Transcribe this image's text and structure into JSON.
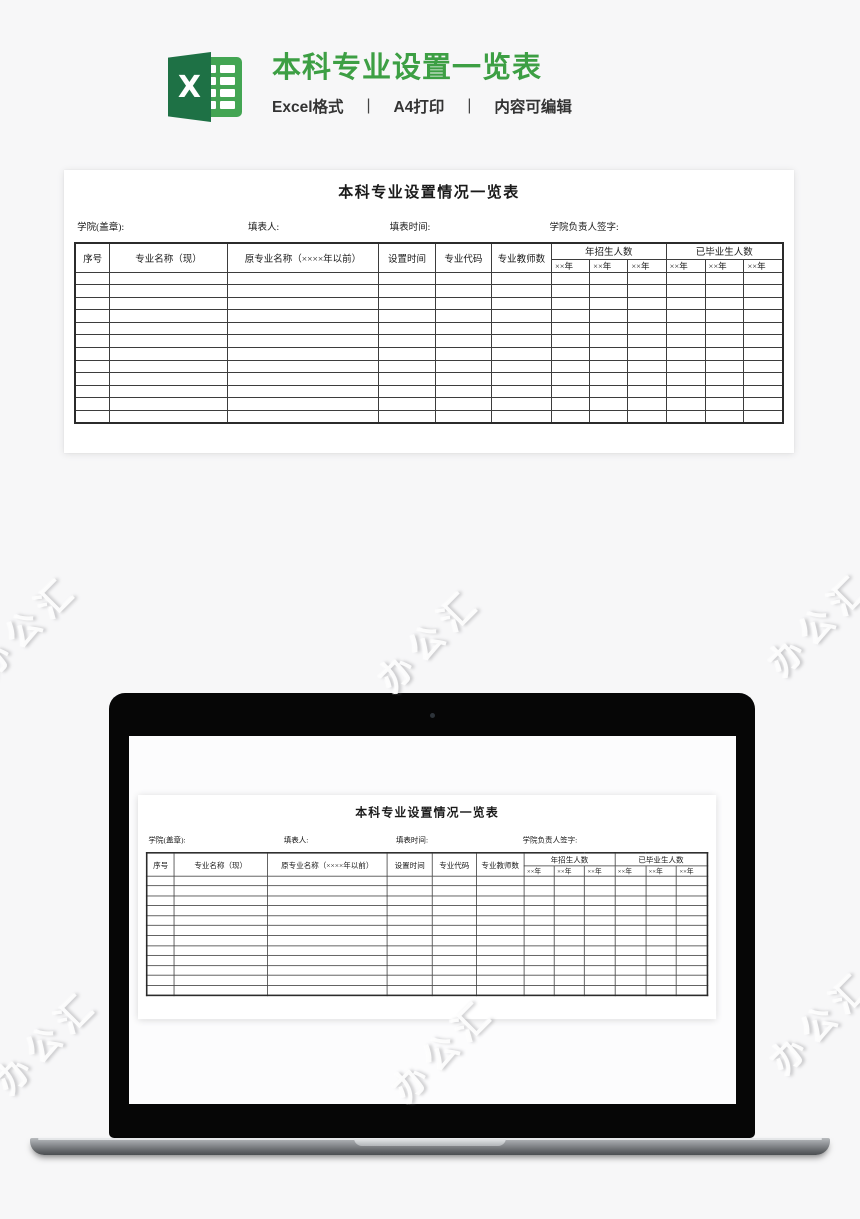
{
  "page": {
    "watermark": "办公汇"
  },
  "header": {
    "excel_icon_letter": "X",
    "title": "本科专业设置一览表",
    "features": {
      "format": "Excel格式",
      "print": "A4打印",
      "editable": "内容可编辑"
    },
    "separator": "|"
  },
  "sheet": {
    "title": "本科专业设置情况一览表",
    "meta": {
      "college_label": "学院(盖章):",
      "filler_label": "填表人:",
      "date_label": "填表时间:",
      "signature_label": "学院负责人签字:"
    },
    "table": {
      "col_seq": "序号",
      "col_major_current": "专业名称（现）",
      "col_major_former": "原专业名称（××××年以前）",
      "col_setup_time": "设置时间",
      "col_major_code": "专业代码",
      "col_teacher_count": "专业教师数",
      "group_enrollment": "年招生人数",
      "group_graduates": "已毕业生人数",
      "sub_year": "××年",
      "empty_row_count": 12
    }
  },
  "colors": {
    "title_green": "#3d9f44",
    "excel_dark_green": "#1e7145",
    "excel_light_green": "#43a553"
  }
}
